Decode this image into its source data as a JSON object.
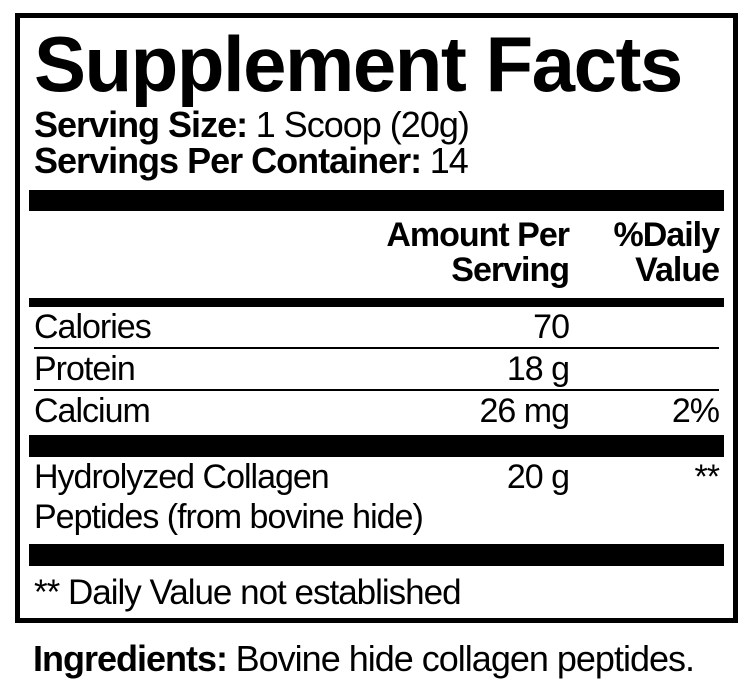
{
  "panel": {
    "title": "Supplement Facts",
    "serving_size": {
      "label": "Serving Size:",
      "value": "1 Scoop (20g)"
    },
    "servings_per_container": {
      "label": "Servings Per Container:",
      "value": "14"
    },
    "header": {
      "amount_line1": "Amount Per",
      "amount_line2": "Serving",
      "dv_line1": "%Daily",
      "dv_line2": "Value"
    },
    "rows": [
      {
        "name": "Calories",
        "amount": "70",
        "dv": ""
      },
      {
        "name": "Protein",
        "amount": "18 g",
        "dv": ""
      },
      {
        "name": "Calcium",
        "amount": "26 mg",
        "dv": "2%"
      },
      {
        "name": "Hydrolyzed Collagen Peptides (from bovine hide)",
        "amount": "20 g",
        "dv": "**"
      }
    ],
    "footnote": "** Daily Value not established",
    "ingredients": {
      "label": "Ingredients:",
      "value": "Bovine hide collagen peptides."
    },
    "colors": {
      "ink": "#000000",
      "paper": "#ffffff"
    }
  }
}
